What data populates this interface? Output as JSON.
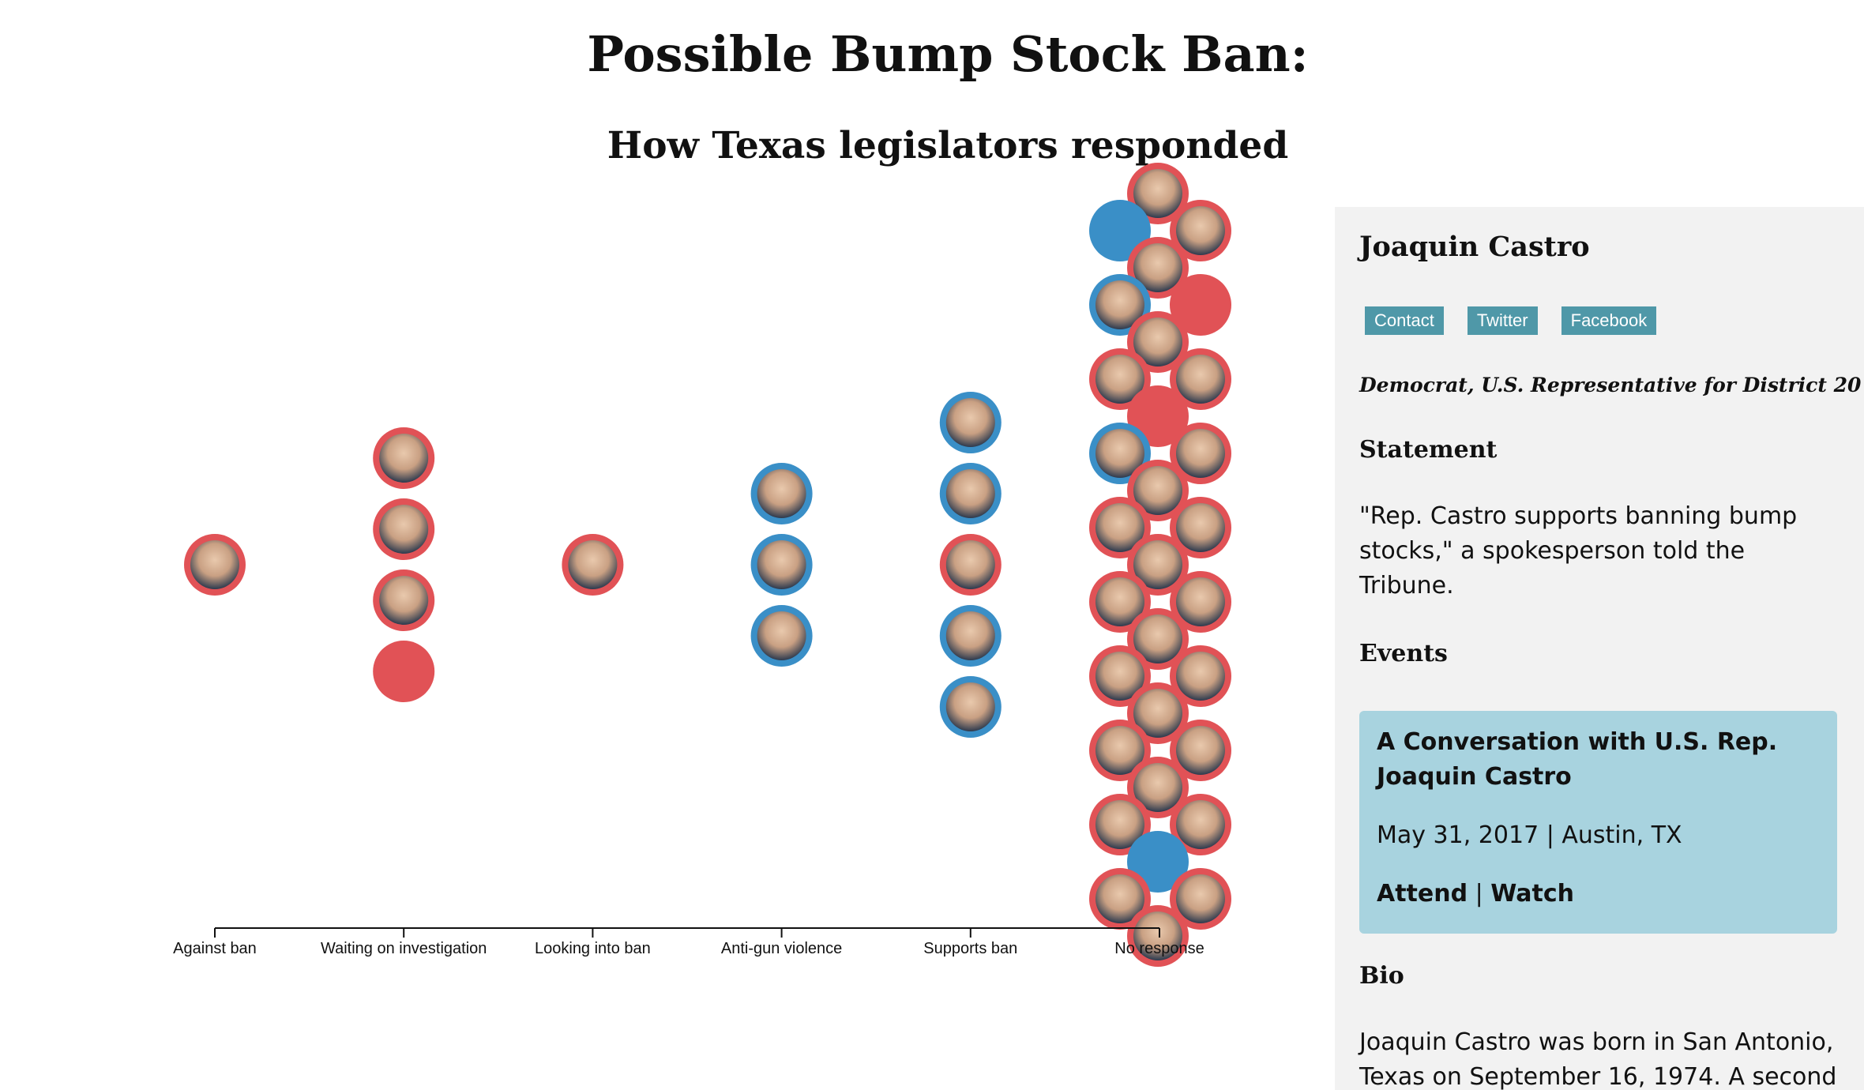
{
  "page": {
    "title": "Possible Bump Stock Ban:",
    "subtitle": "How Texas legislators responded"
  },
  "colors": {
    "republican": "#e15256",
    "democrat": "#3a8fc7",
    "sidebar_bg": "#f2f2f2",
    "link_bg": "#4f98a8",
    "event_bg": "#a8d3df"
  },
  "chart_data": {
    "type": "scatter",
    "subtype": "beeswarm of legislator photo markers grouped by response category",
    "categories": [
      "Against ban",
      "Waiting on investigation",
      "Looking into ban",
      "Anti-gun violence",
      "Supports ban",
      "No response"
    ],
    "counts": [
      1,
      4,
      1,
      3,
      5,
      31
    ],
    "groups": [
      {
        "category": "Against ban",
        "members": [
          {
            "party": "republican",
            "photo": true
          }
        ]
      },
      {
        "category": "Waiting on investigation",
        "members": [
          {
            "party": "republican",
            "photo": true
          },
          {
            "party": "republican",
            "photo": true
          },
          {
            "party": "republican",
            "photo": true
          },
          {
            "party": "republican",
            "photo": false
          }
        ]
      },
      {
        "category": "Looking into ban",
        "members": [
          {
            "party": "republican",
            "photo": true
          }
        ]
      },
      {
        "category": "Anti-gun violence",
        "members": [
          {
            "party": "democrat",
            "photo": true
          },
          {
            "party": "democrat",
            "photo": true
          },
          {
            "party": "democrat",
            "photo": true
          }
        ]
      },
      {
        "category": "Supports ban",
        "members": [
          {
            "party": "democrat",
            "photo": true
          },
          {
            "party": "democrat",
            "photo": true
          },
          {
            "party": "republican",
            "photo": true
          },
          {
            "party": "democrat",
            "photo": true
          },
          {
            "party": "democrat",
            "photo": true
          }
        ]
      },
      {
        "category": "No response",
        "members": [
          {
            "party": "republican",
            "photo": true
          },
          {
            "party": "democrat",
            "photo": false
          },
          {
            "party": "republican",
            "photo": true
          },
          {
            "party": "republican",
            "photo": true
          },
          {
            "party": "democrat",
            "photo": true
          },
          {
            "party": "republican",
            "photo": false
          },
          {
            "party": "republican",
            "photo": true
          },
          {
            "party": "republican",
            "photo": true
          },
          {
            "party": "republican",
            "photo": true
          },
          {
            "party": "republican",
            "photo": false
          },
          {
            "party": "democrat",
            "photo": true
          },
          {
            "party": "republican",
            "photo": true
          },
          {
            "party": "republican",
            "photo": true
          },
          {
            "party": "republican",
            "photo": true
          },
          {
            "party": "republican",
            "photo": true
          },
          {
            "party": "republican",
            "photo": true
          },
          {
            "party": "republican",
            "photo": true
          },
          {
            "party": "republican",
            "photo": true
          },
          {
            "party": "republican",
            "photo": true
          },
          {
            "party": "republican",
            "photo": true
          },
          {
            "party": "republican",
            "photo": true
          },
          {
            "party": "republican",
            "photo": true
          },
          {
            "party": "republican",
            "photo": true
          },
          {
            "party": "republican",
            "photo": true
          },
          {
            "party": "republican",
            "photo": true
          },
          {
            "party": "republican",
            "photo": true
          },
          {
            "party": "republican",
            "photo": true
          },
          {
            "party": "democrat",
            "photo": false
          },
          {
            "party": "republican",
            "photo": true
          },
          {
            "party": "republican",
            "photo": true
          },
          {
            "party": "republican",
            "photo": true
          }
        ]
      }
    ],
    "title": "",
    "xlabel": "",
    "ylabel": "",
    "legend": "none",
    "grid": false
  },
  "sidebar": {
    "name": "Joaquin Castro",
    "links": [
      "Contact",
      "Twitter",
      "Facebook"
    ],
    "role": "Democrat, U.S. Representative for District 20",
    "statement_heading": "Statement",
    "statement": "\"Rep. Castro supports banning bump stocks,\" a spokesperson told the Tribune.",
    "events_heading": "Events",
    "event": {
      "title": "A Conversation with U.S. Rep. Joaquin Castro",
      "date": "May 31, 2017",
      "separator": "|",
      "location": "Austin, TX",
      "attend": "Attend",
      "watch": "Watch"
    },
    "bio_heading": "Bio",
    "bio": "Joaquin Castro was born in San Antonio, Texas on September 16, 1974. A second"
  }
}
